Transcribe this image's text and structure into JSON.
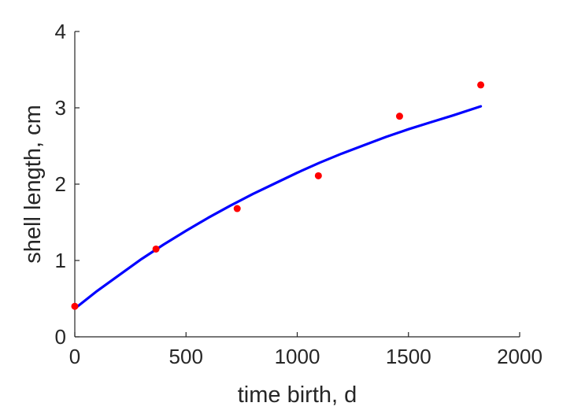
{
  "chart_data": {
    "type": "scatter",
    "title": "",
    "xlabel": "time birth, d",
    "ylabel": "shell length, cm",
    "xlim": [
      0,
      2000
    ],
    "ylim": [
      0,
      4
    ],
    "xticks": [
      0,
      500,
      1000,
      1500,
      2000
    ],
    "yticks": [
      0,
      1,
      2,
      3,
      4
    ],
    "xtick_labels": [
      "0",
      "500",
      "1000",
      "1500",
      "2000"
    ],
    "ytick_labels": [
      "0",
      "1",
      "2",
      "3",
      "4"
    ],
    "grid": false,
    "legend": "none",
    "box": "left-bottom axes only",
    "series": [
      {
        "kind": "scatter",
        "color": "#ff0000",
        "x": [
          0,
          365,
          730,
          1095,
          1460,
          1825
        ],
        "y": [
          0.4,
          1.15,
          1.68,
          2.11,
          2.89,
          3.3
        ]
      },
      {
        "kind": "line",
        "color": "#0000ff",
        "x": [
          0,
          100,
          200,
          300,
          400,
          500,
          600,
          700,
          800,
          900,
          1000,
          1100,
          1200,
          1300,
          1400,
          1500,
          1600,
          1700,
          1825
        ],
        "y": [
          0.37,
          0.6,
          0.81,
          1.02,
          1.21,
          1.39,
          1.56,
          1.72,
          1.87,
          2.01,
          2.15,
          2.28,
          2.4,
          2.51,
          2.62,
          2.72,
          2.81,
          2.9,
          3.02
        ]
      }
    ]
  }
}
